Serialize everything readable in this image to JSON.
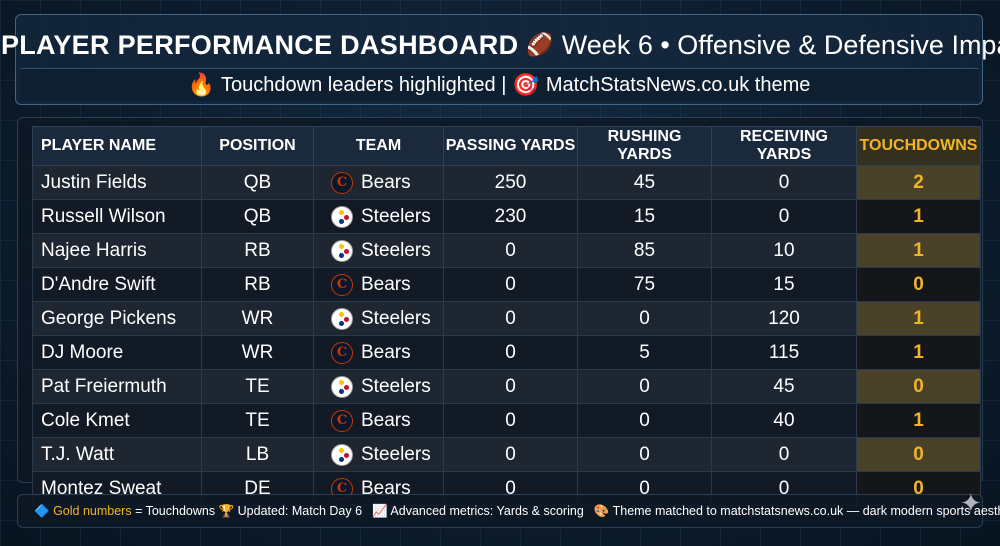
{
  "header": {
    "chart_icon": "📊",
    "title": "PLAYER PERFORMANCE DASHBOARD",
    "football_icon": "🏈",
    "subtitle": "Week 6 • Offensive & Defensive Impact",
    "fire_icon": "🔥",
    "tagline_left": "Touchdown leaders highlighted |",
    "target_icon": "🎯",
    "tagline_right": "MatchStatsNews.co.uk theme"
  },
  "table": {
    "columns": [
      "PLAYER NAME",
      "POSITION",
      "TEAM",
      "PASSING YARDS",
      "RUSHING YARDS",
      "RECEIVING YARDS",
      "TOUCHDOWNS"
    ],
    "rows": [
      {
        "name": "Justin Fields",
        "position": "QB",
        "team": "Bears",
        "passing": "250",
        "rushing": "45",
        "receiving": "0",
        "touchdowns": "2"
      },
      {
        "name": "Russell Wilson",
        "position": "QB",
        "team": "Steelers",
        "passing": "230",
        "rushing": "15",
        "receiving": "0",
        "touchdowns": "1"
      },
      {
        "name": "Najee Harris",
        "position": "RB",
        "team": "Steelers",
        "passing": "0",
        "rushing": "85",
        "receiving": "10",
        "touchdowns": "1"
      },
      {
        "name": "D'Andre Swift",
        "position": "RB",
        "team": "Bears",
        "passing": "0",
        "rushing": "75",
        "receiving": "15",
        "touchdowns": "0"
      },
      {
        "name": "George Pickens",
        "position": "WR",
        "team": "Steelers",
        "passing": "0",
        "rushing": "0",
        "receiving": "120",
        "touchdowns": "1"
      },
      {
        "name": "DJ Moore",
        "position": "WR",
        "team": "Bears",
        "passing": "0",
        "rushing": "5",
        "receiving": "115",
        "touchdowns": "1"
      },
      {
        "name": "Pat Freiermuth",
        "position": "TE",
        "team": "Steelers",
        "passing": "0",
        "rushing": "0",
        "receiving": "45",
        "touchdowns": "0"
      },
      {
        "name": "Cole Kmet",
        "position": "TE",
        "team": "Bears",
        "passing": "0",
        "rushing": "0",
        "receiving": "40",
        "touchdowns": "1"
      },
      {
        "name": "T.J. Watt",
        "position": "LB",
        "team": "Steelers",
        "passing": "0",
        "rushing": "0",
        "receiving": "0",
        "touchdowns": "0"
      },
      {
        "name": "Montez Sweat",
        "position": "DE",
        "team": "Bears",
        "passing": "0",
        "rushing": "0",
        "receiving": "0",
        "touchdowns": "0"
      }
    ]
  },
  "footer": {
    "legend_icon": "🔷",
    "gold_text": "Gold numbers",
    "legend_rest": "= Touchdowns",
    "trophy_icon": "🏆",
    "updated": "Updated: Match Day 6",
    "metrics_icon": "📈",
    "metrics": "Advanced metrics: Yards & scoring",
    "palette_icon": "🎨",
    "theme": "Theme matched to matchstatsnews.co.uk — dark modern sports aesthetic"
  },
  "colors": {
    "gold": "#f0b429",
    "bears_navy": "#0b162a",
    "bears_orange": "#c83803",
    "background": "#0d1d2e"
  },
  "logos": {
    "bears": "bears-logo-icon",
    "steelers": "steelers-logo-icon"
  }
}
